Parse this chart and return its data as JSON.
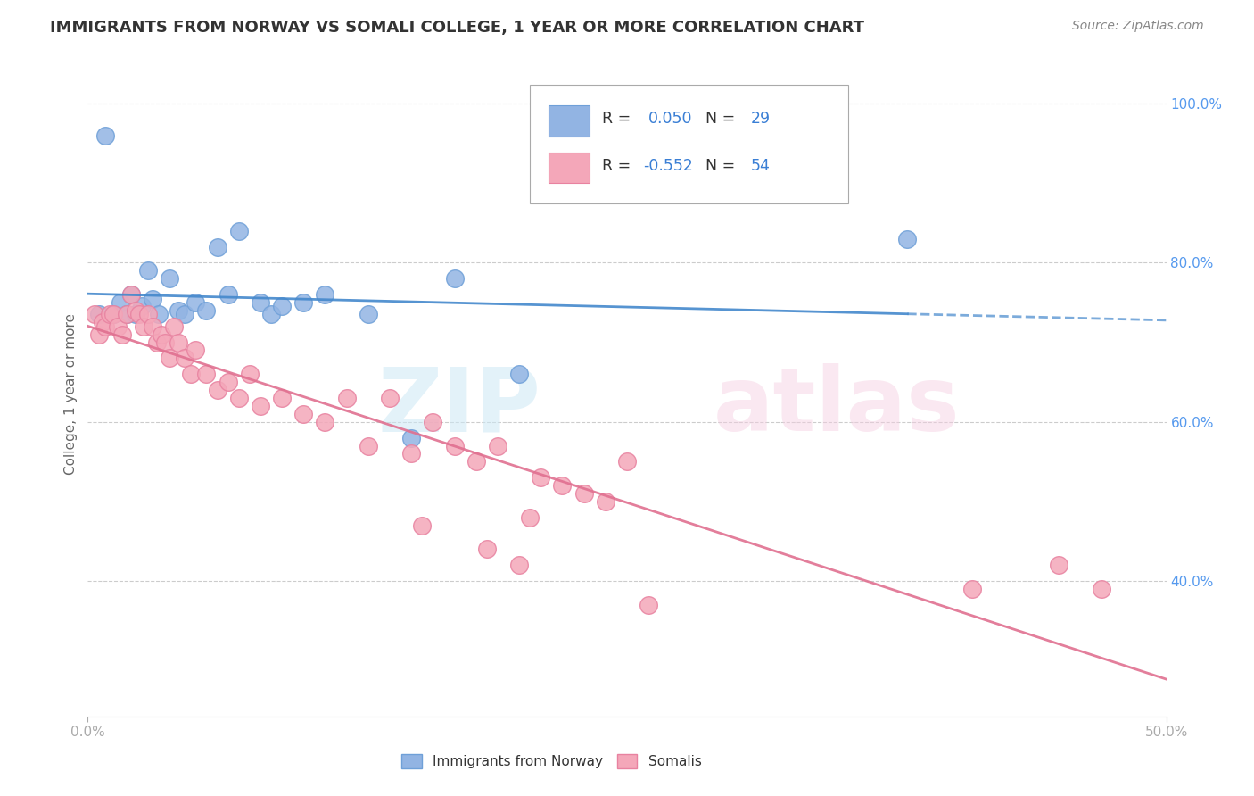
{
  "title": "IMMIGRANTS FROM NORWAY VS SOMALI COLLEGE, 1 YEAR OR MORE CORRELATION CHART",
  "source": "Source: ZipAtlas.com",
  "ylabel": "College, 1 year or more",
  "xlim": [
    0.0,
    0.5
  ],
  "ylim": [
    0.23,
    1.04
  ],
  "norway_color": "#92b4e3",
  "somali_color": "#f4a7b9",
  "norway_edge": "#6fa0d8",
  "somali_edge": "#e882a0",
  "norway_R": 0.05,
  "norway_N": 29,
  "somali_R": -0.552,
  "somali_N": 54,
  "legend_label_norway": "Immigrants from Norway",
  "legend_label_somali": "Somalis",
  "norway_points_x": [
    0.005,
    0.008,
    0.012,
    0.015,
    0.018,
    0.02,
    0.022,
    0.025,
    0.028,
    0.03,
    0.033,
    0.038,
    0.042,
    0.045,
    0.05,
    0.055,
    0.06,
    0.065,
    0.07,
    0.08,
    0.085,
    0.09,
    0.1,
    0.11,
    0.13,
    0.15,
    0.17,
    0.2,
    0.38
  ],
  "norway_points_y": [
    0.735,
    0.96,
    0.735,
    0.75,
    0.735,
    0.76,
    0.735,
    0.745,
    0.79,
    0.755,
    0.735,
    0.78,
    0.74,
    0.735,
    0.75,
    0.74,
    0.82,
    0.76,
    0.84,
    0.75,
    0.735,
    0.745,
    0.75,
    0.76,
    0.735,
    0.58,
    0.78,
    0.66,
    0.83
  ],
  "somali_points_x": [
    0.003,
    0.005,
    0.007,
    0.008,
    0.01,
    0.012,
    0.014,
    0.016,
    0.018,
    0.02,
    0.022,
    0.024,
    0.026,
    0.028,
    0.03,
    0.032,
    0.034,
    0.036,
    0.038,
    0.04,
    0.042,
    0.045,
    0.048,
    0.05,
    0.055,
    0.06,
    0.065,
    0.07,
    0.075,
    0.08,
    0.09,
    0.1,
    0.11,
    0.12,
    0.13,
    0.14,
    0.15,
    0.16,
    0.17,
    0.18,
    0.19,
    0.2,
    0.21,
    0.22,
    0.23,
    0.24,
    0.25,
    0.155,
    0.185,
    0.205,
    0.26,
    0.47,
    0.41,
    0.45
  ],
  "somali_points_y": [
    0.735,
    0.71,
    0.725,
    0.72,
    0.735,
    0.735,
    0.72,
    0.71,
    0.735,
    0.76,
    0.74,
    0.735,
    0.72,
    0.735,
    0.72,
    0.7,
    0.71,
    0.7,
    0.68,
    0.72,
    0.7,
    0.68,
    0.66,
    0.69,
    0.66,
    0.64,
    0.65,
    0.63,
    0.66,
    0.62,
    0.63,
    0.61,
    0.6,
    0.63,
    0.57,
    0.63,
    0.56,
    0.6,
    0.57,
    0.55,
    0.57,
    0.42,
    0.53,
    0.52,
    0.51,
    0.5,
    0.55,
    0.47,
    0.44,
    0.48,
    0.37,
    0.39,
    0.39,
    0.42
  ],
  "background_color": "#ffffff",
  "grid_color": "#cccccc",
  "title_color": "#333333",
  "axis_label_color": "#666666",
  "tick_color": "#aaaaaa",
  "blue_text": "#3a7fd5",
  "right_tick_color": "#5599ee"
}
